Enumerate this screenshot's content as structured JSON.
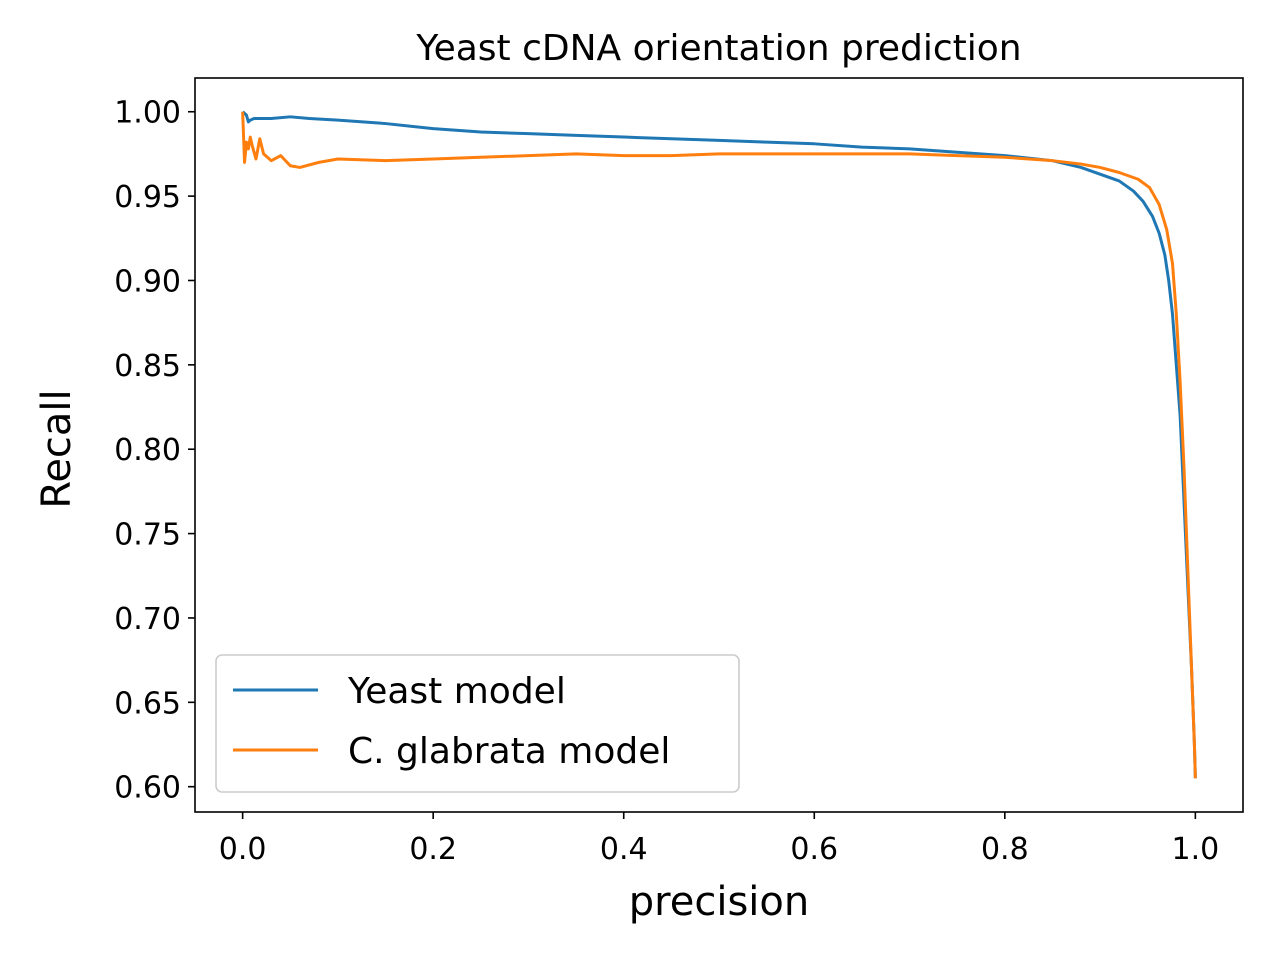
{
  "chart_data": {
    "type": "line",
    "title": "Yeast cDNA orientation prediction",
    "xlabel": "precision",
    "ylabel": "Recall",
    "xlim": [
      -0.05,
      1.05
    ],
    "ylim": [
      0.585,
      1.02
    ],
    "xticks": [
      0.0,
      0.2,
      0.4,
      0.6,
      0.8,
      1.0
    ],
    "xtick_labels": [
      "0.0",
      "0.2",
      "0.4",
      "0.6",
      "0.8",
      "1.0"
    ],
    "yticks": [
      0.6,
      0.65,
      0.7,
      0.75,
      0.8,
      0.85,
      0.9,
      0.95,
      1.0
    ],
    "ytick_labels": [
      "0.60",
      "0.65",
      "0.70",
      "0.75",
      "0.80",
      "0.85",
      "0.90",
      "0.95",
      "1.00"
    ],
    "grid": false,
    "legend_position": "lower-left",
    "series": [
      {
        "name": "Yeast model",
        "color": "#1f77b4",
        "x": [
          0.0,
          0.002,
          0.004,
          0.006,
          0.008,
          0.012,
          0.02,
          0.03,
          0.05,
          0.07,
          0.1,
          0.15,
          0.2,
          0.25,
          0.3,
          0.35,
          0.4,
          0.45,
          0.5,
          0.55,
          0.6,
          0.65,
          0.7,
          0.75,
          0.8,
          0.85,
          0.88,
          0.9,
          0.92,
          0.935,
          0.945,
          0.955,
          0.962,
          0.968,
          0.972,
          0.976,
          0.98,
          0.984,
          0.988,
          0.992,
          0.996,
          0.999,
          1.0
        ],
        "y": [
          1.0,
          0.999,
          0.998,
          0.994,
          0.995,
          0.996,
          0.996,
          0.996,
          0.997,
          0.996,
          0.995,
          0.993,
          0.99,
          0.988,
          0.987,
          0.986,
          0.985,
          0.984,
          0.983,
          0.982,
          0.981,
          0.979,
          0.978,
          0.976,
          0.974,
          0.971,
          0.967,
          0.963,
          0.959,
          0.953,
          0.947,
          0.938,
          0.928,
          0.915,
          0.9,
          0.88,
          0.85,
          0.82,
          0.77,
          0.72,
          0.67,
          0.625,
          0.605
        ]
      },
      {
        "name": "C. glabrata model",
        "color": "#ff7f0e",
        "x": [
          0.0,
          0.002,
          0.004,
          0.006,
          0.008,
          0.01,
          0.014,
          0.018,
          0.022,
          0.03,
          0.04,
          0.05,
          0.06,
          0.08,
          0.1,
          0.15,
          0.2,
          0.25,
          0.3,
          0.35,
          0.4,
          0.45,
          0.5,
          0.55,
          0.6,
          0.65,
          0.7,
          0.75,
          0.8,
          0.85,
          0.88,
          0.9,
          0.92,
          0.94,
          0.952,
          0.962,
          0.97,
          0.976,
          0.98,
          0.984,
          0.988,
          0.992,
          0.996,
          0.999,
          1.0
        ],
        "y": [
          1.0,
          0.97,
          0.982,
          0.978,
          0.985,
          0.98,
          0.972,
          0.984,
          0.975,
          0.971,
          0.974,
          0.968,
          0.967,
          0.97,
          0.972,
          0.971,
          0.972,
          0.973,
          0.974,
          0.975,
          0.974,
          0.974,
          0.975,
          0.975,
          0.975,
          0.975,
          0.975,
          0.974,
          0.973,
          0.971,
          0.969,
          0.967,
          0.964,
          0.96,
          0.955,
          0.945,
          0.93,
          0.91,
          0.88,
          0.84,
          0.79,
          0.73,
          0.67,
          0.625,
          0.605
        ]
      }
    ]
  }
}
